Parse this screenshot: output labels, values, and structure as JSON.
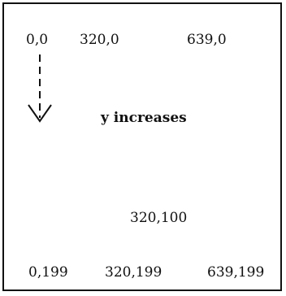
{
  "labels": {
    "top_left": "0,0",
    "top_middle": "320,0",
    "top_right": "639,0",
    "center": "320,100",
    "bottom_left": "0,199",
    "bottom_middle": "320,199",
    "bottom_right": "639,199"
  },
  "annotation": "y increases",
  "colors": {
    "ink": "#111111",
    "background": "#ffffff"
  }
}
